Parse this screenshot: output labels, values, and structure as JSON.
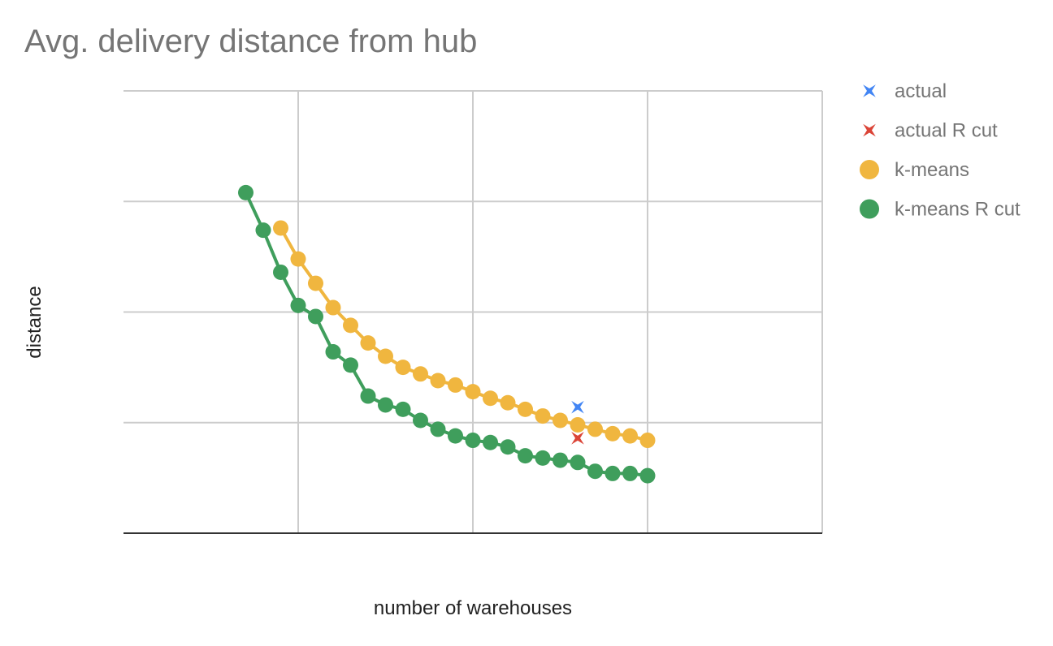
{
  "chart_data": {
    "type": "line",
    "title": "Avg. delivery distance from hub",
    "xlabel": "number of warehouses",
    "ylabel": "distance",
    "xlim": [
      0,
      20
    ],
    "ylim": [
      0,
      100
    ],
    "x_gridlines": 4,
    "y_gridlines": 4,
    "x_tick_labels_visible": false,
    "y_tick_labels_visible": false,
    "grid": true,
    "legend_position": "right",
    "series": [
      {
        "name": "actual",
        "type": "scatter",
        "marker": "star",
        "color": "#4285F4",
        "x": [
          13.0
        ],
        "y": [
          28.5
        ]
      },
      {
        "name": "actual R cut",
        "type": "scatter",
        "marker": "star",
        "color": "#DB4437",
        "x": [
          13.0
        ],
        "y": [
          21.5
        ]
      },
      {
        "name": "k-means",
        "type": "line",
        "marker": "circle",
        "color": "#F0B63F",
        "x": [
          4.5,
          5,
          5.5,
          6,
          6.5,
          7,
          7.5,
          8,
          8.5,
          9,
          9.5,
          10,
          10.5,
          11,
          11.5,
          12,
          12.5,
          13,
          13.5,
          14,
          14.5,
          15
        ],
        "y": [
          69,
          62,
          56.5,
          51,
          47,
          43,
          40,
          37.5,
          36,
          34.5,
          33.5,
          32,
          30.5,
          29.5,
          28,
          26.5,
          25.5,
          24.5,
          23.5,
          22.5,
          22,
          21
        ]
      },
      {
        "name": "k-means R cut",
        "type": "line",
        "marker": "circle",
        "color": "#3F9E5C",
        "x": [
          3.5,
          4,
          4.5,
          5,
          5.5,
          6,
          6.5,
          7,
          7.5,
          8,
          8.5,
          9,
          9.5,
          10,
          10.5,
          11,
          11.5,
          12,
          12.5,
          13,
          13.5,
          14,
          14.5,
          15
        ],
        "y": [
          77,
          68.5,
          59,
          51.5,
          49,
          41,
          38,
          31,
          29,
          28,
          25.5,
          23.5,
          22,
          21,
          20.5,
          19.5,
          17.5,
          17,
          16.5,
          16,
          14,
          13.5,
          13.5,
          13
        ]
      }
    ]
  }
}
